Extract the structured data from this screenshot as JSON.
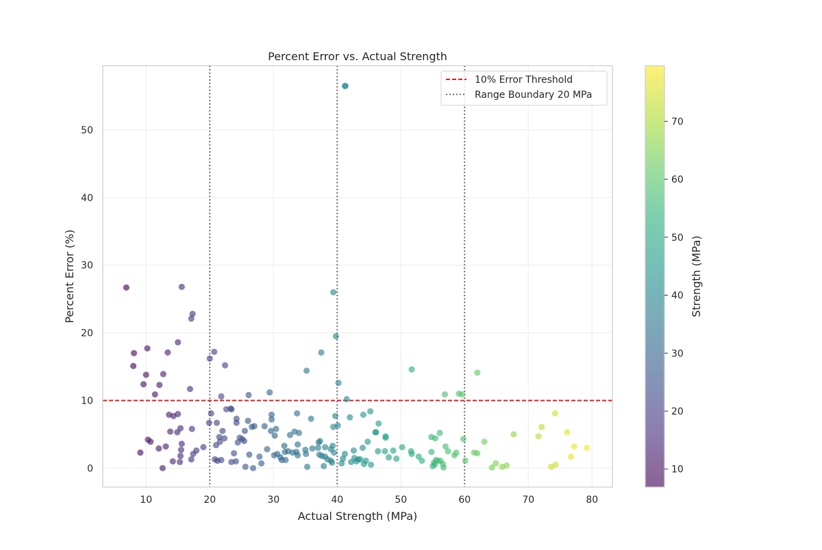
{
  "chart_data": {
    "type": "scatter",
    "title": "Percent Error vs. Actual Strength",
    "xlabel": "Actual Strength (MPa)",
    "ylabel": "Percent Error (%)",
    "xlim": [
      3.2,
      83.2
    ],
    "ylim": [
      -2.8,
      59.5
    ],
    "xticks": [
      10,
      20,
      30,
      40,
      50,
      60,
      70,
      80
    ],
    "yticks": [
      0,
      10,
      20,
      30,
      40,
      50
    ],
    "grid": true,
    "legend_position": "top-right",
    "threshold": {
      "label": "10% Error Threshold",
      "y": 10,
      "color": "#e41a1c",
      "style": "dashed"
    },
    "boundaries": {
      "label": "Range Boundary 20 MPa",
      "x": [
        20,
        40,
        60
      ],
      "color": "#737373",
      "style": "dotted"
    },
    "colorbar": {
      "label": "Strength (MPa)",
      "min": 6.9,
      "max": 79.6,
      "ticks": [
        10,
        20,
        30,
        40,
        50,
        60,
        70
      ],
      "colormap": "viridis"
    },
    "series": [
      {
        "points": [
          [
            6.9,
            26.7
          ],
          [
            8.0,
            15.1
          ],
          [
            8.1,
            17.0
          ],
          [
            9.1,
            2.3
          ],
          [
            9.6,
            12.4
          ],
          [
            10.0,
            13.8
          ],
          [
            10.2,
            17.7
          ],
          [
            10.3,
            4.2
          ],
          [
            10.7,
            3.9
          ],
          [
            11.4,
            10.9
          ],
          [
            12.0,
            2.9
          ],
          [
            12.1,
            12.3
          ],
          [
            12.6,
            0.0
          ],
          [
            12.7,
            13.9
          ],
          [
            13.1,
            3.2
          ],
          [
            13.4,
            17.1
          ],
          [
            13.6,
            7.9
          ],
          [
            13.8,
            5.4
          ],
          [
            14.2,
            1.0
          ],
          [
            14.3,
            7.7
          ],
          [
            14.9,
            5.3
          ],
          [
            15.0,
            8.0
          ],
          [
            15.0,
            18.6
          ],
          [
            15.3,
            0.9
          ],
          [
            15.4,
            1.8
          ],
          [
            15.4,
            5.9
          ],
          [
            15.5,
            2.7
          ],
          [
            15.6,
            26.8
          ],
          [
            15.6,
            3.6
          ],
          [
            16.9,
            11.7
          ],
          [
            17.1,
            1.3
          ],
          [
            17.1,
            22.1
          ],
          [
            17.2,
            5.8
          ],
          [
            17.3,
            22.8
          ],
          [
            17.4,
            2.1
          ],
          [
            17.9,
            2.6
          ],
          [
            19.0,
            3.1
          ],
          [
            19.9,
            6.7
          ],
          [
            20.0,
            16.2
          ],
          [
            20.2,
            8.1
          ],
          [
            20.7,
            17.2
          ],
          [
            20.8,
            1.3
          ],
          [
            21.0,
            3.4
          ],
          [
            21.1,
            6.7
          ],
          [
            21.2,
            1.1
          ],
          [
            21.5,
            4.6
          ],
          [
            21.6,
            3.9
          ],
          [
            21.8,
            10.6
          ],
          [
            21.8,
            1.2
          ],
          [
            22.0,
            5.5
          ],
          [
            22.3,
            4.4
          ],
          [
            22.4,
            15.2
          ],
          [
            22.6,
            8.7
          ],
          [
            23.3,
            8.8
          ],
          [
            23.4,
            8.7
          ],
          [
            23.4,
            0.9
          ],
          [
            23.8,
            2.2
          ],
          [
            24.1,
            1.0
          ],
          [
            24.2,
            7.3
          ],
          [
            24.2,
            6.7
          ],
          [
            24.4,
            3.8
          ],
          [
            24.7,
            4.5
          ],
          [
            25.1,
            4.3
          ],
          [
            25.4,
            4.0
          ],
          [
            25.5,
            5.5
          ],
          [
            25.6,
            0.2
          ],
          [
            26.0,
            7.0
          ],
          [
            26.1,
            10.8
          ],
          [
            26.2,
            2.0
          ],
          [
            26.6,
            6.1
          ],
          [
            26.8,
            0.0
          ],
          [
            27.0,
            6.2
          ],
          [
            27.8,
            1.7
          ],
          [
            28.1,
            0.7
          ],
          [
            28.6,
            6.2
          ],
          [
            29.0,
            2.8
          ],
          [
            29.4,
            11.2
          ],
          [
            29.6,
            5.5
          ],
          [
            29.7,
            7.9
          ],
          [
            29.7,
            7.2
          ],
          [
            30.1,
            1.9
          ],
          [
            30.2,
            4.8
          ],
          [
            30.4,
            5.8
          ],
          [
            30.6,
            2.1
          ],
          [
            31.1,
            1.6
          ],
          [
            31.3,
            1.2
          ],
          [
            31.7,
            3.3
          ],
          [
            31.8,
            2.4
          ],
          [
            31.9,
            1.2
          ],
          [
            32.3,
            2.5
          ],
          [
            32.6,
            4.9
          ],
          [
            33.0,
            2.3
          ],
          [
            33.3,
            5.4
          ],
          [
            33.6,
            2.4
          ],
          [
            33.7,
            8.1
          ],
          [
            33.8,
            3.5
          ],
          [
            33.8,
            1.9
          ],
          [
            34.0,
            5.2
          ],
          [
            35.0,
            2.7
          ],
          [
            35.1,
            2.1
          ],
          [
            35.2,
            14.4
          ],
          [
            35.3,
            0.2
          ],
          [
            35.9,
            7.3
          ],
          [
            36.1,
            2.9
          ],
          [
            37.0,
            3.0
          ],
          [
            37.1,
            3.8
          ],
          [
            37.2,
            2.0
          ],
          [
            37.3,
            4.0
          ],
          [
            37.5,
            17.1
          ],
          [
            37.6,
            1.8
          ],
          [
            37.9,
            0.3
          ],
          [
            38.1,
            3.1
          ],
          [
            38.1,
            1.7
          ],
          [
            38.5,
            1.3
          ],
          [
            39.0,
            2.8
          ],
          [
            39.0,
            1.1
          ],
          [
            39.2,
            0.8
          ],
          [
            39.3,
            3.3
          ],
          [
            39.4,
            26.0
          ],
          [
            39.4,
            6.1
          ],
          [
            39.5,
            2.3
          ],
          [
            39.7,
            7.7
          ],
          [
            39.8,
            19.5
          ],
          [
            40.1,
            6.3
          ],
          [
            40.2,
            12.6
          ],
          [
            40.7,
            0.7
          ],
          [
            40.9,
            1.4
          ],
          [
            41.2,
            2.1
          ],
          [
            41.2,
            56.5
          ],
          [
            41.3,
            56.5
          ],
          [
            41.5,
            10.2
          ],
          [
            42.0,
            7.5
          ],
          [
            42.2,
            0.9
          ],
          [
            42.6,
            2.6
          ],
          [
            42.7,
            1.5
          ],
          [
            43.0,
            1.0
          ],
          [
            43.3,
            1.3
          ],
          [
            43.6,
            1.3
          ],
          [
            44.0,
            3.0
          ],
          [
            44.1,
            7.9
          ],
          [
            44.2,
            0.6
          ],
          [
            44.5,
            1.1
          ],
          [
            44.8,
            3.9
          ],
          [
            45.2,
            8.4
          ],
          [
            45.3,
            0.5
          ],
          [
            46.0,
            5.3
          ],
          [
            46.1,
            5.3
          ],
          [
            46.4,
            2.5
          ],
          [
            46.5,
            6.6
          ],
          [
            47.5,
            2.5
          ],
          [
            47.6,
            4.7
          ],
          [
            47.6,
            4.5
          ],
          [
            48.1,
            1.6
          ],
          [
            48.8,
            2.6
          ],
          [
            49.3,
            1.4
          ],
          [
            50.2,
            3.1
          ],
          [
            51.6,
            2.5
          ],
          [
            51.7,
            2.1
          ],
          [
            51.7,
            14.6
          ],
          [
            52.8,
            1.7
          ],
          [
            53.3,
            1.1
          ],
          [
            54.8,
            4.6
          ],
          [
            54.8,
            2.4
          ],
          [
            55.0,
            0.3
          ],
          [
            55.2,
            0.8
          ],
          [
            55.3,
            0.5
          ],
          [
            55.4,
            4.4
          ],
          [
            55.5,
            1.2
          ],
          [
            55.8,
            1.1
          ],
          [
            56.1,
            5.2
          ],
          [
            56.2,
            1.1
          ],
          [
            56.6,
            0.6
          ],
          [
            56.7,
            0.1
          ],
          [
            56.9,
            10.9
          ],
          [
            57.0,
            3.2
          ],
          [
            57.4,
            2.5
          ],
          [
            58.4,
            1.9
          ],
          [
            58.7,
            2.3
          ],
          [
            59.1,
            11.0
          ],
          [
            59.6,
            10.9
          ],
          [
            59.8,
            4.3
          ],
          [
            60.1,
            1.1
          ],
          [
            61.5,
            2.3
          ],
          [
            62.0,
            14.1
          ],
          [
            62.0,
            2.2
          ],
          [
            63.1,
            3.9
          ],
          [
            64.3,
            0.1
          ],
          [
            64.9,
            0.7
          ],
          [
            65.9,
            0.2
          ],
          [
            66.6,
            0.4
          ],
          [
            67.7,
            5.0
          ],
          [
            71.6,
            4.7
          ],
          [
            72.1,
            6.1
          ],
          [
            73.6,
            0.2
          ],
          [
            74.2,
            8.1
          ],
          [
            74.3,
            0.5
          ],
          [
            76.1,
            5.3
          ],
          [
            76.7,
            1.7
          ],
          [
            77.2,
            3.2
          ],
          [
            79.2,
            3.0
          ]
        ]
      }
    ]
  }
}
